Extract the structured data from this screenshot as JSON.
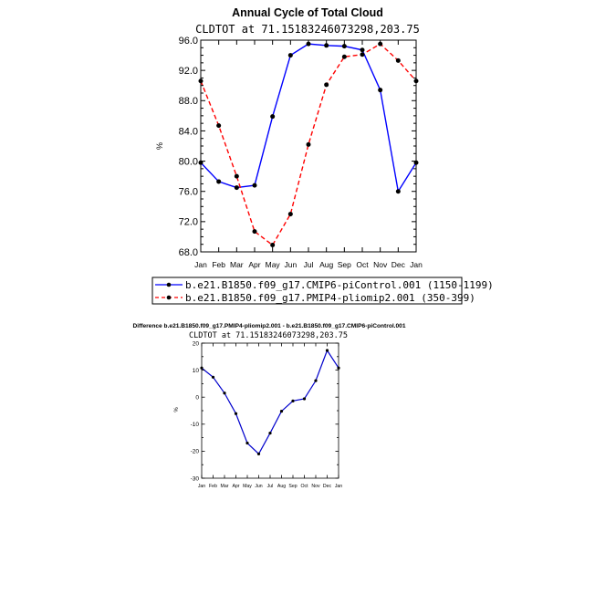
{
  "chart_data": [
    {
      "type": "line",
      "title": "Annual Cycle of Total Cloud",
      "subtitle": "CLDTOT at 71.15183246073298,203.75",
      "xlabel": "",
      "ylabel": "%",
      "categories": [
        "Jan",
        "Feb",
        "Mar",
        "Apr",
        "May",
        "Jun",
        "Jul",
        "Aug",
        "Sep",
        "Oct",
        "Nov",
        "Dec",
        "Jan"
      ],
      "ylim": [
        68,
        96
      ],
      "yticks": [
        "68.0",
        "72.0",
        "76.0",
        "80.0",
        "84.0",
        "88.0",
        "92.0",
        "96.0"
      ],
      "series": [
        {
          "name": "b.e21.B1850.f09_g17.CMIP6-piControl.001 (1150-1199)",
          "color": "#0000ff",
          "dash": "solid",
          "values": [
            79.8,
            77.3,
            76.5,
            76.8,
            85.9,
            94.0,
            95.5,
            95.3,
            95.2,
            94.7,
            89.4,
            76.0,
            79.8
          ]
        },
        {
          "name": "b.e21.B1850.f09_g17.PMIP4-pliomip2.001 (350-399)",
          "color": "#ff0000",
          "dash": "dashed",
          "values": [
            90.6,
            84.7,
            78.0,
            70.7,
            68.9,
            73.0,
            82.2,
            90.1,
            93.8,
            94.1,
            95.5,
            93.3,
            90.6
          ]
        }
      ],
      "legend": "below"
    },
    {
      "type": "line",
      "title": "Difference b.e21.B1850.f09_g17.PMIP4-pliomip2.001 - b.e21.B1850.f09_g17.CMIP6-piControl.001",
      "subtitle": "CLDTOT at 71.15183246073298,203.75",
      "xlabel": "",
      "ylabel": "%",
      "categories": [
        "Jan",
        "Feb",
        "Mar",
        "Apr",
        "May",
        "Jun",
        "Jul",
        "Aug",
        "Sep",
        "Oct",
        "Nov",
        "Dec",
        "Jan"
      ],
      "ylim": [
        -30,
        20
      ],
      "yticks": [
        "-30",
        "-20",
        "-10",
        "0",
        "10",
        "20"
      ],
      "series": [
        {
          "name": "difference",
          "color": "#0000cc",
          "dash": "solid",
          "values": [
            10.8,
            7.4,
            1.5,
            -6.1,
            -17.0,
            -21.0,
            -13.3,
            -5.2,
            -1.4,
            -0.6,
            6.1,
            17.3,
            10.8
          ]
        }
      ]
    }
  ]
}
